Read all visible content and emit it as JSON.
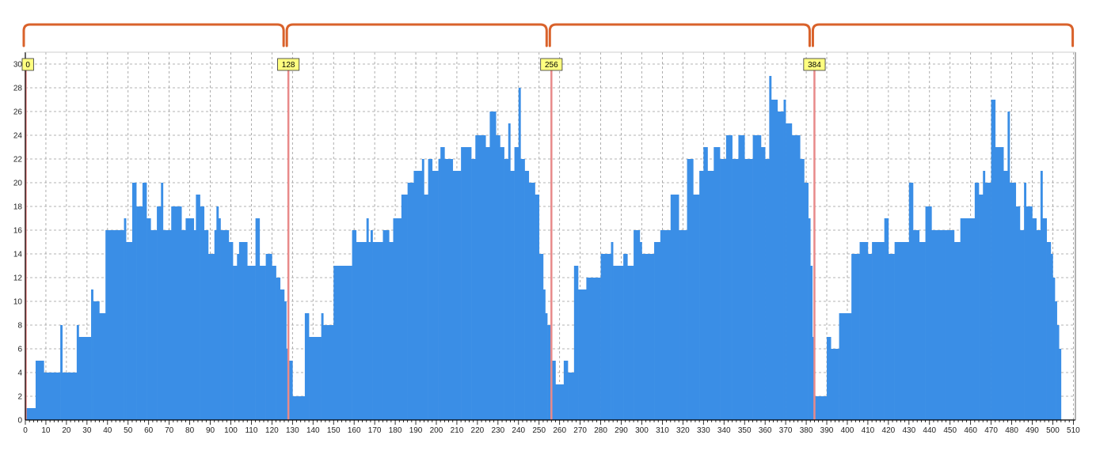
{
  "chart_data": {
    "type": "bar",
    "title": "",
    "xlabel": "",
    "ylabel": "",
    "xlim": [
      0,
      511
    ],
    "ylim": [
      0,
      31
    ],
    "x_ticks": [
      0,
      10,
      20,
      30,
      40,
      50,
      60,
      70,
      80,
      90,
      100,
      110,
      120,
      130,
      140,
      150,
      160,
      170,
      180,
      190,
      200,
      210,
      220,
      230,
      240,
      250,
      260,
      270,
      280,
      290,
      300,
      310,
      320,
      330,
      340,
      350,
      360,
      370,
      380,
      390,
      400,
      410,
      420,
      430,
      440,
      450,
      460,
      470,
      480,
      490,
      500,
      510
    ],
    "y_ticks": [
      0,
      2,
      4,
      6,
      8,
      10,
      12,
      14,
      16,
      18,
      20,
      22,
      24,
      26,
      28,
      30
    ],
    "grid": true,
    "bar_color": "#3a8ee6",
    "markers": [
      {
        "label": "0",
        "x": 0
      },
      {
        "label": "128",
        "x": 128
      },
      {
        "label": "256",
        "x": 256
      },
      {
        "label": "384",
        "x": 384
      }
    ],
    "marker_line_color": "#e88a8a",
    "marker_label_bg": "#ffff80",
    "bracket_color": "#d9622b",
    "bracket_groups": 4,
    "segments": [
      [
        0,
        5,
        1
      ],
      [
        5,
        9,
        5
      ],
      [
        9,
        17,
        4
      ],
      [
        17,
        18,
        8
      ],
      [
        18,
        25,
        4
      ],
      [
        25,
        26,
        8
      ],
      [
        26,
        32,
        7
      ],
      [
        32,
        33,
        11
      ],
      [
        33,
        36,
        10
      ],
      [
        36,
        39,
        9
      ],
      [
        39,
        48,
        16
      ],
      [
        48,
        49,
        17
      ],
      [
        49,
        52,
        15
      ],
      [
        52,
        54,
        20
      ],
      [
        54,
        57,
        18
      ],
      [
        57,
        59,
        20
      ],
      [
        59,
        61,
        17
      ],
      [
        61,
        64,
        16
      ],
      [
        64,
        66,
        18
      ],
      [
        66,
        67,
        20
      ],
      [
        67,
        71,
        16
      ],
      [
        71,
        76,
        18
      ],
      [
        76,
        78,
        16
      ],
      [
        78,
        82,
        17
      ],
      [
        82,
        83,
        16
      ],
      [
        83,
        85,
        19
      ],
      [
        85,
        87,
        18
      ],
      [
        87,
        89,
        16
      ],
      [
        89,
        92,
        14
      ],
      [
        92,
        93,
        16
      ],
      [
        93,
        94,
        18
      ],
      [
        94,
        95,
        17
      ],
      [
        95,
        99,
        16
      ],
      [
        99,
        101,
        15
      ],
      [
        101,
        103,
        13
      ],
      [
        103,
        104,
        14
      ],
      [
        104,
        108,
        15
      ],
      [
        108,
        112,
        13
      ],
      [
        112,
        114,
        17
      ],
      [
        114,
        117,
        13
      ],
      [
        117,
        120,
        14
      ],
      [
        120,
        122,
        13
      ],
      [
        122,
        124,
        12
      ],
      [
        124,
        126,
        11
      ],
      [
        126,
        127,
        10
      ],
      [
        127,
        128,
        6
      ],
      [
        128,
        130,
        5
      ],
      [
        130,
        136,
        2
      ],
      [
        136,
        138,
        9
      ],
      [
        138,
        144,
        7
      ],
      [
        144,
        145,
        9
      ],
      [
        145,
        150,
        8
      ],
      [
        150,
        152,
        13
      ],
      [
        152,
        159,
        13
      ],
      [
        159,
        161,
        16
      ],
      [
        161,
        166,
        15
      ],
      [
        166,
        167,
        17
      ],
      [
        167,
        168,
        15
      ],
      [
        168,
        169,
        16
      ],
      [
        169,
        174,
        15
      ],
      [
        174,
        177,
        16
      ],
      [
        177,
        179,
        15
      ],
      [
        179,
        183,
        17
      ],
      [
        183,
        186,
        19
      ],
      [
        186,
        189,
        20
      ],
      [
        189,
        193,
        21
      ],
      [
        193,
        194,
        22
      ],
      [
        194,
        196,
        19
      ],
      [
        196,
        198,
        22
      ],
      [
        198,
        201,
        21
      ],
      [
        201,
        202,
        22
      ],
      [
        202,
        204,
        23
      ],
      [
        204,
        208,
        22
      ],
      [
        208,
        212,
        21
      ],
      [
        212,
        217,
        23
      ],
      [
        217,
        219,
        22
      ],
      [
        219,
        224,
        24
      ],
      [
        224,
        226,
        23
      ],
      [
        226,
        229,
        26
      ],
      [
        229,
        231,
        24
      ],
      [
        231,
        233,
        23
      ],
      [
        233,
        235,
        22
      ],
      [
        235,
        236,
        25
      ],
      [
        236,
        238,
        21
      ],
      [
        238,
        240,
        23
      ],
      [
        240,
        241,
        28
      ],
      [
        241,
        243,
        22
      ],
      [
        243,
        245,
        21
      ],
      [
        245,
        248,
        20
      ],
      [
        248,
        250,
        19
      ],
      [
        250,
        252,
        14
      ],
      [
        252,
        253,
        11
      ],
      [
        253,
        254,
        9
      ],
      [
        254,
        256,
        8
      ],
      [
        256,
        258,
        5
      ],
      [
        258,
        262,
        3
      ],
      [
        262,
        264,
        5
      ],
      [
        264,
        267,
        4
      ],
      [
        267,
        269,
        13
      ],
      [
        269,
        273,
        11
      ],
      [
        273,
        280,
        12
      ],
      [
        280,
        285,
        14
      ],
      [
        285,
        286,
        15
      ],
      [
        286,
        291,
        13
      ],
      [
        291,
        293,
        14
      ],
      [
        293,
        296,
        13
      ],
      [
        296,
        299,
        16
      ],
      [
        299,
        300,
        15
      ],
      [
        300,
        306,
        14
      ],
      [
        306,
        309,
        15
      ],
      [
        309,
        314,
        16
      ],
      [
        314,
        318,
        19
      ],
      [
        318,
        322,
        16
      ],
      [
        322,
        325,
        22
      ],
      [
        325,
        328,
        19
      ],
      [
        328,
        330,
        21
      ],
      [
        330,
        332,
        23
      ],
      [
        332,
        335,
        21
      ],
      [
        335,
        338,
        23
      ],
      [
        338,
        341,
        22
      ],
      [
        341,
        344,
        24
      ],
      [
        344,
        347,
        22
      ],
      [
        347,
        350,
        24
      ],
      [
        350,
        354,
        22
      ],
      [
        354,
        356,
        24
      ],
      [
        356,
        358,
        24
      ],
      [
        358,
        360,
        23
      ],
      [
        360,
        362,
        22
      ],
      [
        362,
        363,
        29
      ],
      [
        363,
        366,
        27
      ],
      [
        366,
        369,
        26
      ],
      [
        369,
        370,
        27
      ],
      [
        370,
        373,
        25
      ],
      [
        373,
        377,
        24
      ],
      [
        377,
        379,
        22
      ],
      [
        379,
        381,
        20
      ],
      [
        381,
        382,
        17
      ],
      [
        382,
        383,
        13
      ],
      [
        383,
        384,
        7
      ],
      [
        384,
        390,
        2
      ],
      [
        390,
        392,
        7
      ],
      [
        392,
        396,
        6
      ],
      [
        396,
        397,
        9
      ],
      [
        397,
        402,
        9
      ],
      [
        402,
        406,
        14
      ],
      [
        406,
        410,
        15
      ],
      [
        410,
        412,
        14
      ],
      [
        412,
        414,
        15
      ],
      [
        414,
        418,
        15
      ],
      [
        418,
        420,
        17
      ],
      [
        420,
        423,
        14
      ],
      [
        423,
        426,
        15
      ],
      [
        426,
        430,
        15
      ],
      [
        430,
        432,
        20
      ],
      [
        432,
        435,
        16
      ],
      [
        435,
        438,
        15
      ],
      [
        438,
        441,
        18
      ],
      [
        441,
        445,
        16
      ],
      [
        445,
        448,
        16
      ],
      [
        448,
        452,
        16
      ],
      [
        452,
        455,
        15
      ],
      [
        455,
        462,
        17
      ],
      [
        462,
        464,
        20
      ],
      [
        464,
        466,
        19
      ],
      [
        466,
        467,
        21
      ],
      [
        467,
        470,
        20
      ],
      [
        470,
        472,
        27
      ],
      [
        472,
        476,
        23
      ],
      [
        476,
        478,
        21
      ],
      [
        478,
        479,
        26
      ],
      [
        479,
        482,
        20
      ],
      [
        482,
        484,
        18
      ],
      [
        484,
        486,
        16
      ],
      [
        486,
        487,
        20
      ],
      [
        487,
        490,
        18
      ],
      [
        490,
        492,
        17
      ],
      [
        492,
        494,
        16
      ],
      [
        494,
        495,
        21
      ],
      [
        495,
        497,
        17
      ],
      [
        497,
        499,
        15
      ],
      [
        499,
        500,
        14
      ],
      [
        500,
        501,
        12
      ],
      [
        501,
        502,
        10
      ],
      [
        502,
        503,
        8
      ],
      [
        503,
        504,
        6
      ]
    ]
  }
}
